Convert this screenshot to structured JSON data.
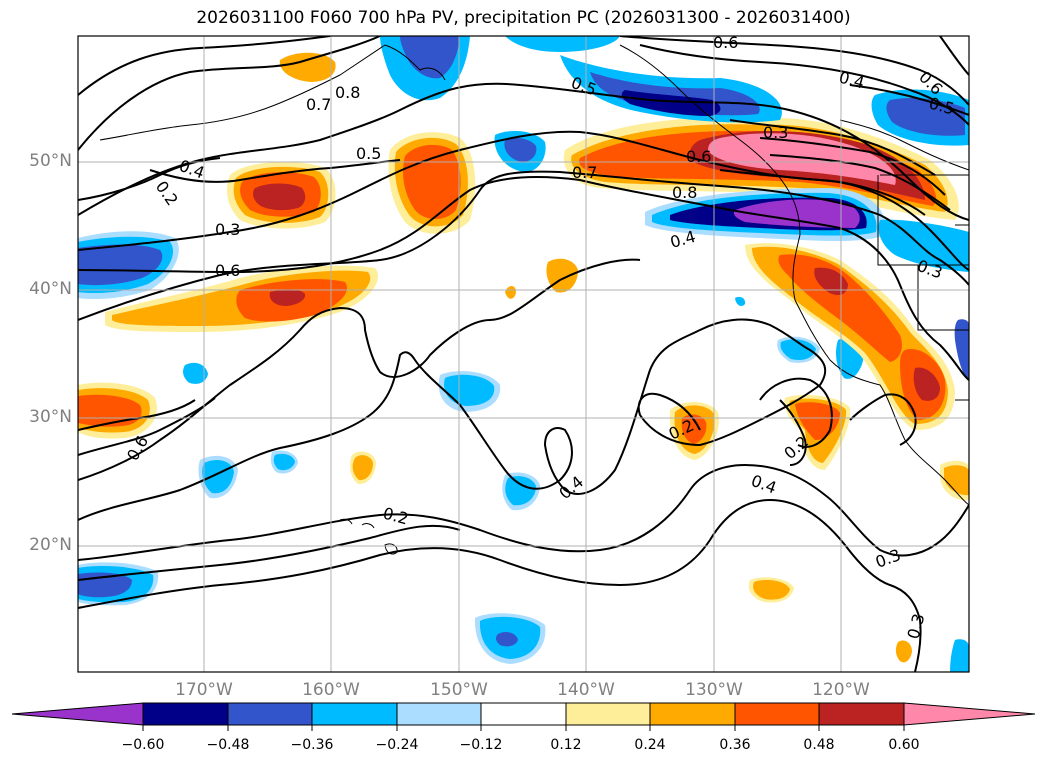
{
  "title": "2026031100 F060 700 hPa PV, precipitation PC (2026031300 - 2026031400)",
  "lat_labels": [
    "50°N",
    "40°N",
    "30°N",
    "20°N"
  ],
  "lon_labels": [
    "170°W",
    "160°W",
    "150°W",
    "140°W",
    "130°W",
    "120°W"
  ],
  "contour_labels": [
    "0.6",
    "0.6",
    "0.8",
    "0.7",
    "0.4",
    "0.2",
    "0.5",
    "0.3",
    "0.6",
    "0.5",
    "0.7",
    "0.6",
    "0.3",
    "0.5",
    "0.8",
    "0.4",
    "0.3",
    "0.6",
    "0.2",
    "0.2",
    "0.4",
    "0.4",
    "0.2",
    "0.3",
    "0.3"
  ],
  "colorbar": {
    "ticks": [
      "−0.60",
      "−0.48",
      "−0.36",
      "−0.24",
      "−0.12",
      "0.12",
      "0.24",
      "0.36",
      "0.48",
      "0.60"
    ],
    "colors": [
      "#9933cc",
      "#000088",
      "#3355cc",
      "#00bbff",
      "#aaddff",
      "#ffffff",
      "#ffee99",
      "#ffaa00",
      "#ff5500",
      "#bb2222",
      "#ff88aa"
    ]
  }
}
